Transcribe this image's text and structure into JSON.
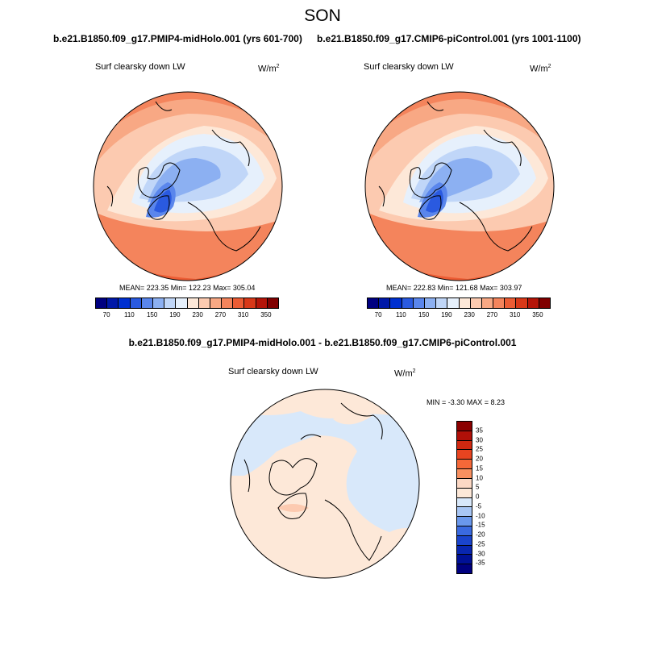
{
  "title": "SON",
  "panels": [
    {
      "case": "b.e21.B1850.f09_g17.PMIP4-midHolo.001 (yrs 601-700)",
      "variable": "Surf clearsky down LW",
      "unit": "W/m",
      "unit_exp": "2",
      "stats": "MEAN= 223.35  Min= 122.23  Max= 305.04"
    },
    {
      "case": "b.e21.B1850.f09_g17.CMIP6-piControl.001 (yrs 1001-1100)",
      "variable": "Surf clearsky down LW",
      "unit": "W/m",
      "unit_exp": "2",
      "stats": "MEAN= 222.83  Min= 121.68  Max= 303.97"
    }
  ],
  "difference": {
    "title": "b.e21.B1850.f09_g17.PMIP4-midHolo.001 - b.e21.B1850.f09_g17.CMIP6-piControl.001",
    "variable": "Surf clearsky down LW",
    "unit": "W/m",
    "unit_exp": "2",
    "minmax": "MIN =  -3.30 MAX =   8.23"
  },
  "colorbar_abs": {
    "colors": [
      "#000080",
      "#0018a8",
      "#0030d0",
      "#2a5ae0",
      "#5a86ec",
      "#8cb0f2",
      "#c0d6f8",
      "#e6f0fc",
      "#fde8d8",
      "#fccab0",
      "#f8a884",
      "#f4845c",
      "#ec5c34",
      "#d83818",
      "#b41408",
      "#800000"
    ],
    "tick_labels": [
      "70",
      "110",
      "150",
      "190",
      "230",
      "270",
      "310",
      "350"
    ]
  },
  "colorbar_diff": {
    "colors": [
      "#8b0000",
      "#b01008",
      "#d02810",
      "#e84420",
      "#f46838",
      "#f89060",
      "#fcd8c4",
      "#fde8d8",
      "#d8e8fa",
      "#a8c6f4",
      "#6a98ec",
      "#3a6ae0",
      "#1a44cc",
      "#0826b0",
      "#001096",
      "#000080"
    ],
    "tick_labels": [
      "35",
      "30",
      "25",
      "20",
      "15",
      "10",
      "5",
      "0",
      "-5",
      "-10",
      "-15",
      "-20",
      "-25",
      "-30",
      "-35"
    ]
  }
}
